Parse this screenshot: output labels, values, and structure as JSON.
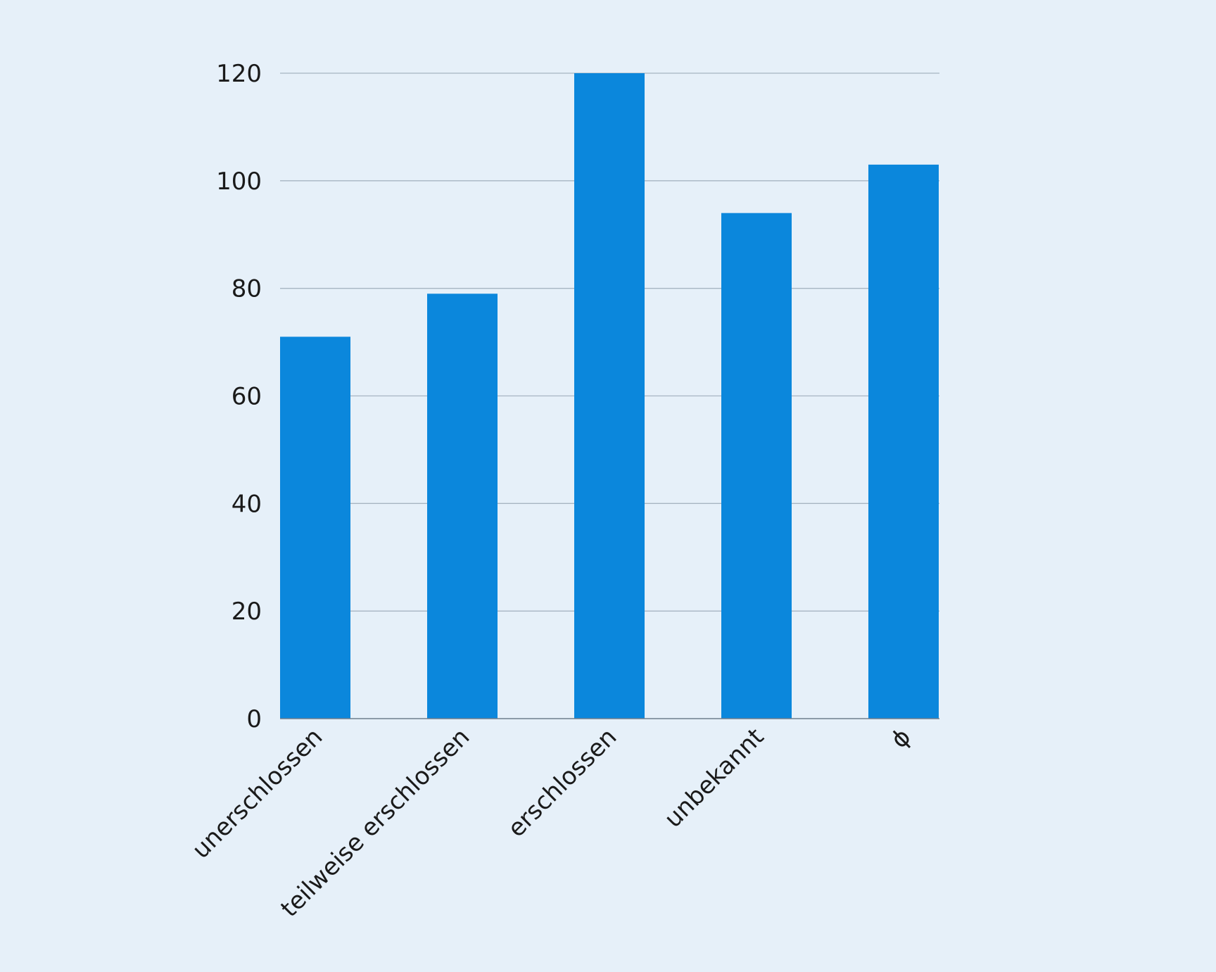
{
  "chart_data": {
    "type": "bar",
    "title": "",
    "xlabel": "",
    "ylabel": "",
    "categories": [
      "unerschlossen",
      "teilweise erschlossen",
      "erschlossen",
      "unbekannt",
      "ϕ"
    ],
    "values": [
      71,
      79,
      120,
      94,
      103
    ],
    "ylim": [
      0,
      120
    ],
    "yticks": [
      "0",
      "20",
      "40",
      "60",
      "80",
      "100",
      "120"
    ],
    "grid": true,
    "legend": "none",
    "colors": {
      "bar": "#0b87dc",
      "grid": "#a7b5c2",
      "axis": "#6f7f8e",
      "background": "#e6f0f9"
    }
  }
}
